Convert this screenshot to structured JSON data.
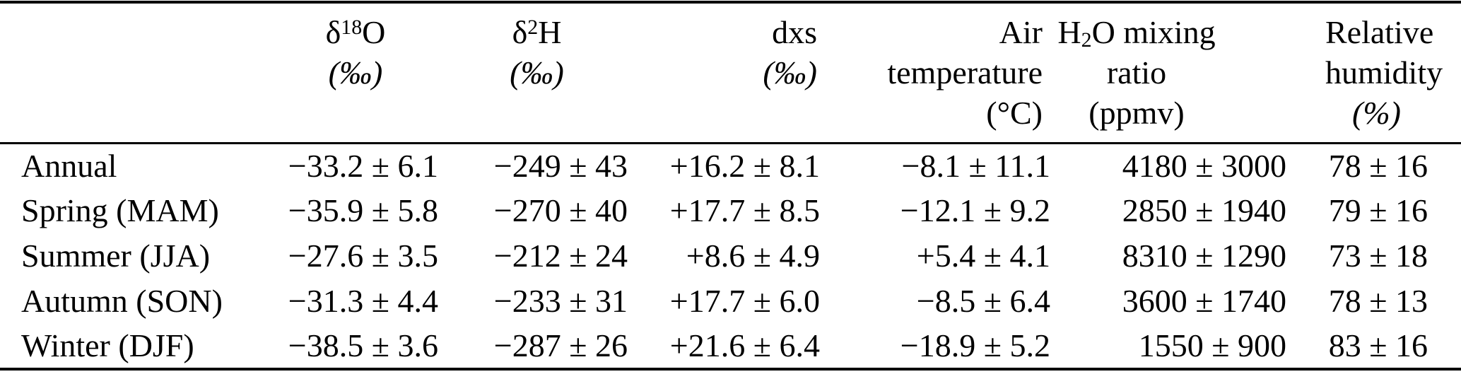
{
  "page": {
    "background_color": "#ffffff",
    "text_color": "#000000",
    "rule_color": "#000000"
  },
  "table": {
    "headers": {
      "season": {
        "label": ""
      },
      "d18O": {
        "symbol": "δ",
        "sup": "18",
        "base": "O",
        "unit": "(‰)"
      },
      "d2H": {
        "symbol": "δ",
        "sup": "2",
        "base": "H",
        "unit": "(‰)"
      },
      "dxs": {
        "name": "dxs",
        "unit": "(‰)"
      },
      "air_temperature": {
        "line1": "Air",
        "line2": "temperature",
        "unit": "(°C)"
      },
      "h2o_mixing_ratio": {
        "base1": "H",
        "sub": "2",
        "base2": "O mixing",
        "line2": "ratio (ppmv)"
      },
      "relative_humidity": {
        "line1": "Relative",
        "line2": "humidity",
        "unit": "(%)"
      }
    },
    "rows": [
      {
        "season": "Annual",
        "d18O": "−33.2 ± 6.1",
        "d2H": "−249 ± 43",
        "dxs": "+16.2 ± 8.1",
        "air_temperature": "−8.1 ± 11.1",
        "h2o_mixing_ratio": "4180 ± 3000",
        "relative_humidity": "78 ± 16"
      },
      {
        "season": "Spring (MAM)",
        "d18O": "−35.9 ± 5.8",
        "d2H": "−270 ± 40",
        "dxs": "+17.7 ± 8.5",
        "air_temperature": "−12.1 ± 9.2",
        "h2o_mixing_ratio": "2850 ± 1940",
        "relative_humidity": "79 ± 16"
      },
      {
        "season": "Summer (JJA)",
        "d18O": "−27.6 ± 3.5",
        "d2H": "−212 ± 24",
        "dxs": "+8.6 ± 4.9",
        "air_temperature": "+5.4 ± 4.1",
        "h2o_mixing_ratio": "8310 ± 1290",
        "relative_humidity": "73 ± 18"
      },
      {
        "season": "Autumn (SON)",
        "d18O": "−31.3 ± 4.4",
        "d2H": "−233 ± 31",
        "dxs": "+17.7 ± 6.0",
        "air_temperature": "−8.5 ± 6.4",
        "h2o_mixing_ratio": "3600 ± 1740",
        "relative_humidity": "78 ± 13"
      },
      {
        "season": "Winter (DJF)",
        "d18O": "−38.5 ± 3.6",
        "d2H": "−287 ± 26",
        "dxs": "+21.6 ± 6.4",
        "air_temperature": "−18.9 ± 5.2",
        "h2o_mixing_ratio": "1550 ± 900",
        "relative_humidity": "83 ± 16"
      }
    ]
  }
}
